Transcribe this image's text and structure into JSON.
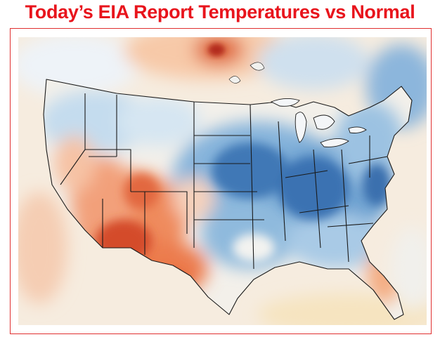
{
  "title": "Today’s EIA Report Temperatures vs Normal",
  "colors": {
    "title": "#e8141c",
    "frame": "#e03030",
    "warm_strong": "#c8361e",
    "warm_mid": "#ec7b4e",
    "warm_light": "#f7c8a5",
    "neutral": "#f4f1ec",
    "cool_light": "#c7dff0",
    "cool_mid": "#7fb0d8",
    "cool_strong": "#3a74b4",
    "land_south": "#f6e4c0"
  },
  "map": {
    "subject": "continental-us-temperature-anomaly",
    "icons": [
      "us-map-icon"
    ]
  }
}
